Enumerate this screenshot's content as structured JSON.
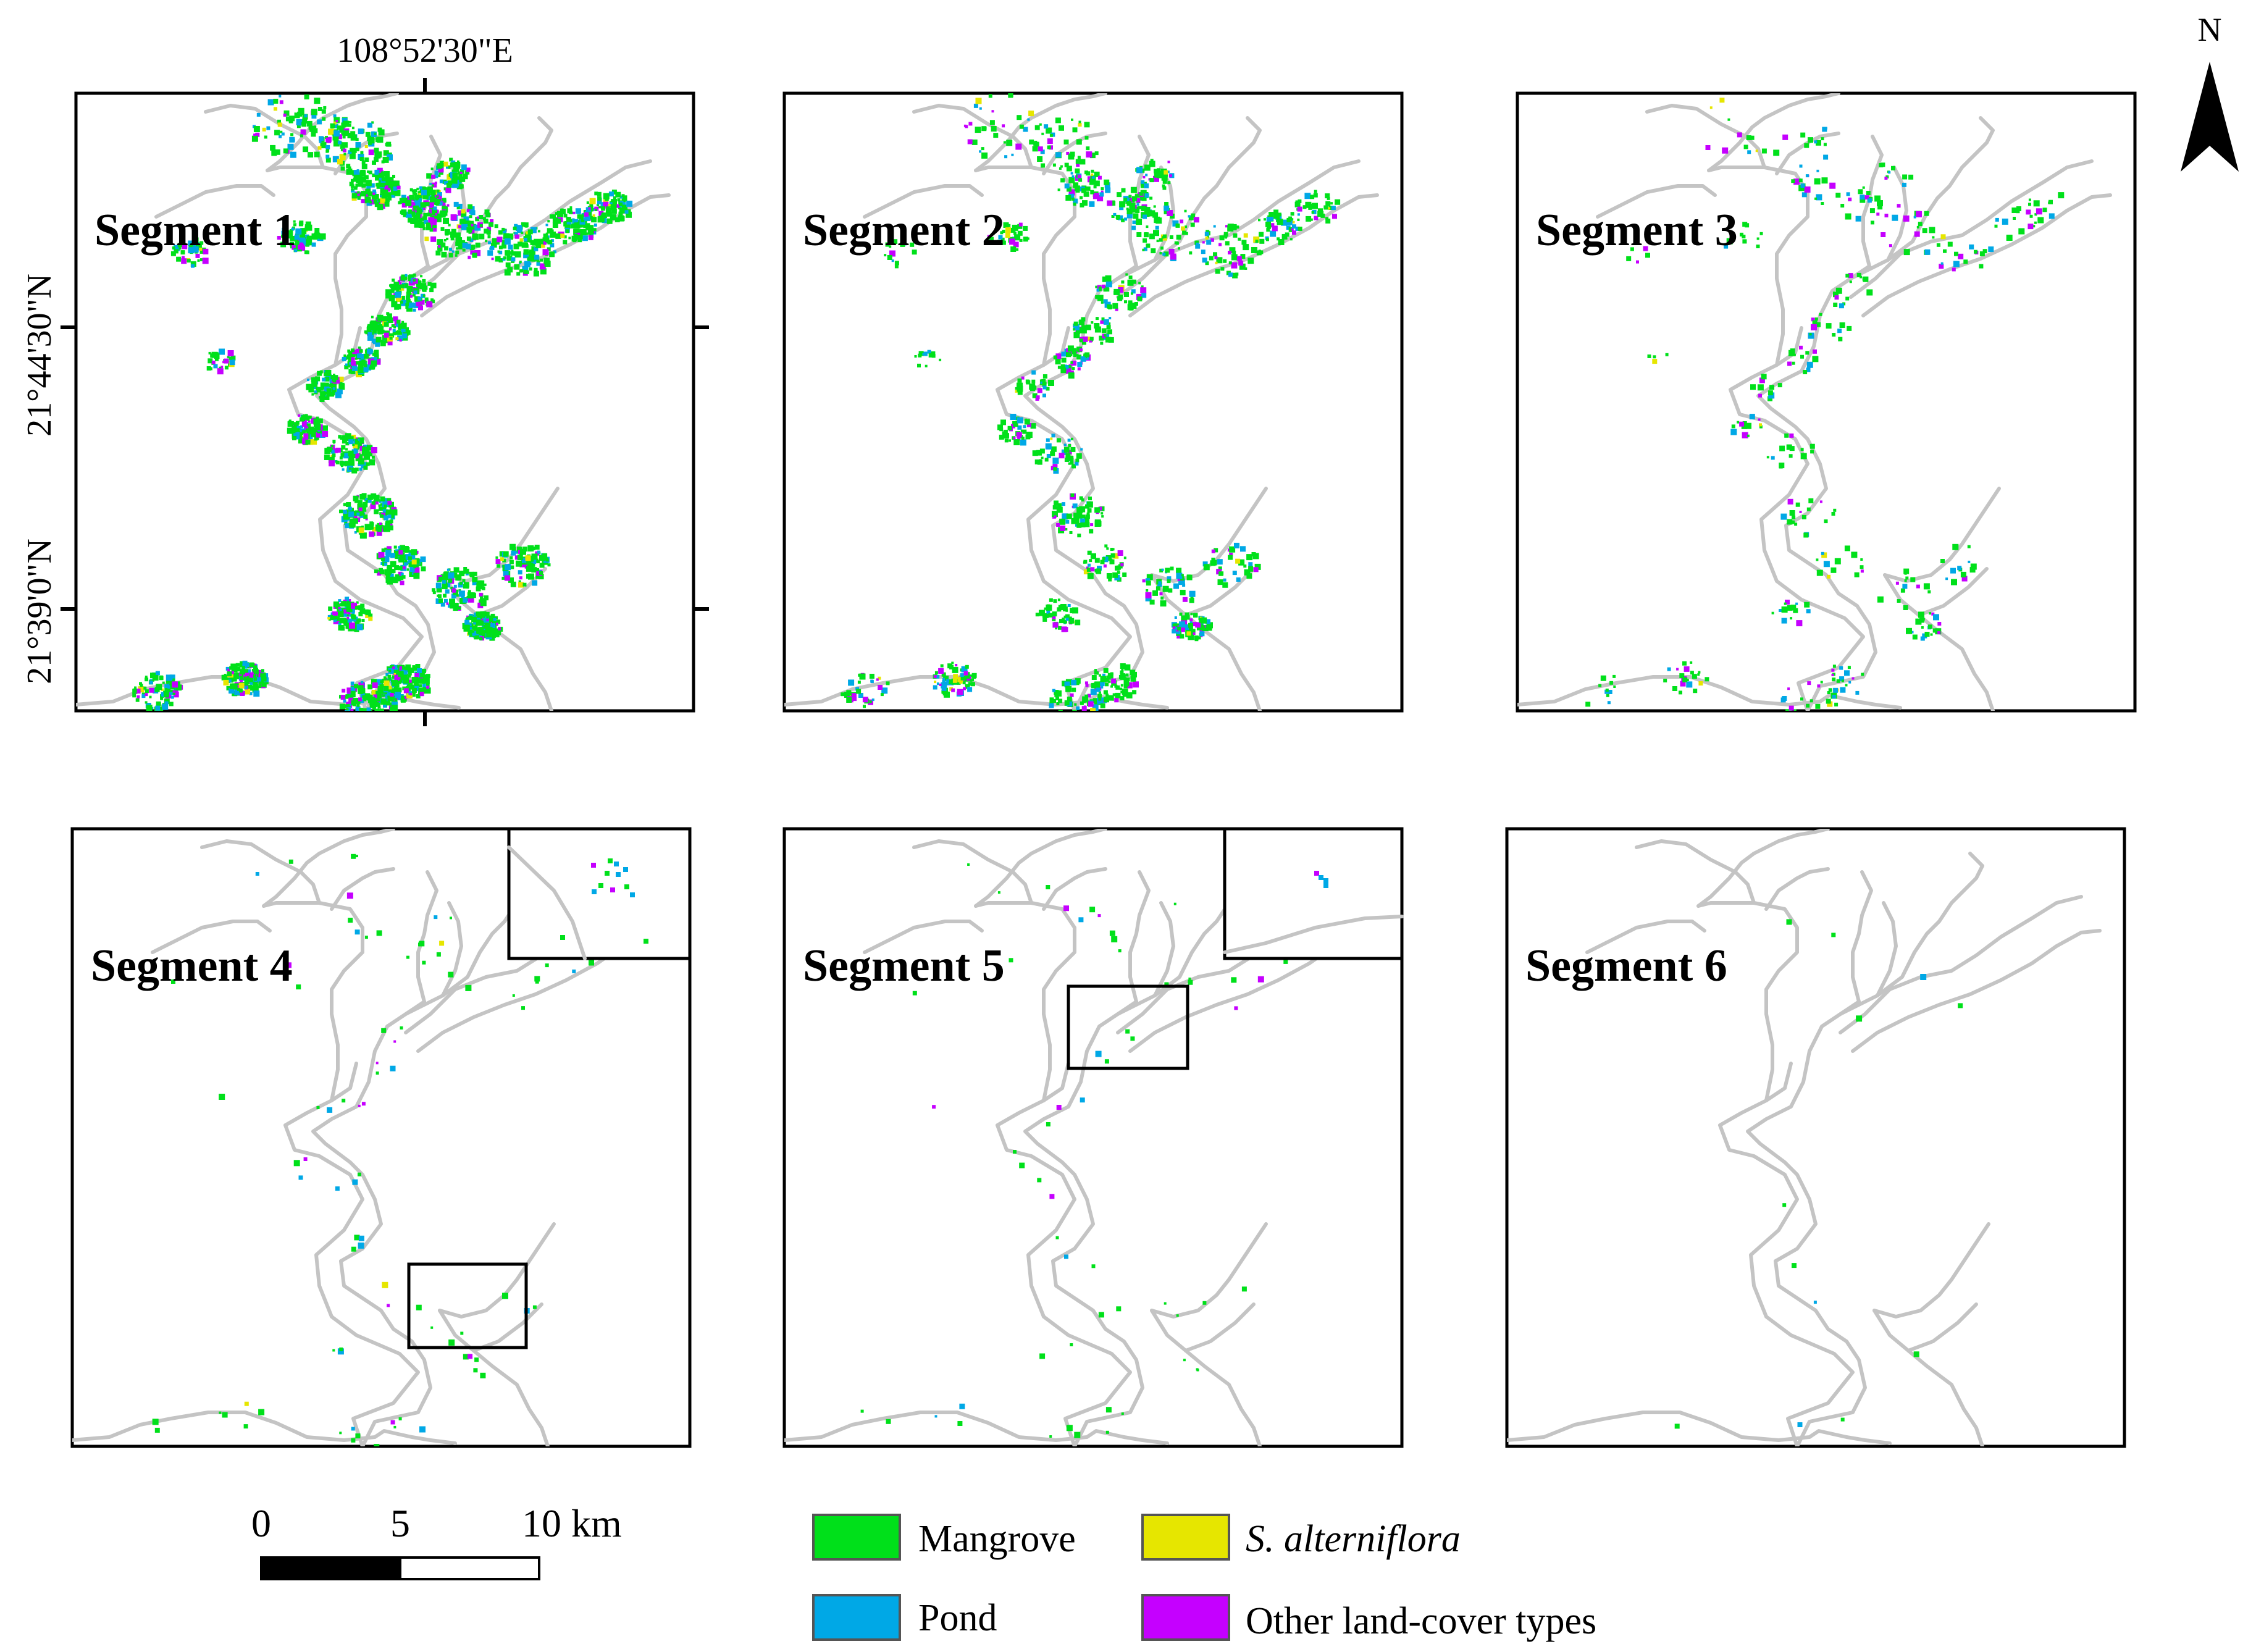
{
  "panels": [
    {
      "label": "Segment 1",
      "density": 1.0,
      "inset": false
    },
    {
      "label": "Segment 2",
      "density": 0.45,
      "inset": false
    },
    {
      "label": "Segment 3",
      "density": 0.14,
      "inset": false
    },
    {
      "label": "Segment 4",
      "density": 0.03,
      "inset": true,
      "inset_box": "lower"
    },
    {
      "label": "Segment 5",
      "density": 0.02,
      "inset": true,
      "inset_box": "upper"
    },
    {
      "label": "Segment 6",
      "density": 0.005,
      "inset": false
    }
  ],
  "coordinates": {
    "longitude": "108°52'30\"E",
    "latitude_upper": "21°44'30\"N",
    "latitude_lower": "21°39'0\"N"
  },
  "north_arrow": {
    "label": "N",
    "icon": "north-arrow-icon"
  },
  "scale_bar": {
    "labels": [
      "0",
      "5",
      "10 km"
    ]
  },
  "legend": {
    "items": [
      {
        "label": "Mangrove",
        "color": "#00e01a",
        "italic": false
      },
      {
        "label": "S. alterniflora",
        "color": "#e6e600",
        "italic": true
      },
      {
        "label": "Pond",
        "color": "#00a8e6",
        "italic": false
      },
      {
        "label": "Other land-cover types",
        "color": "#c500ff",
        "italic": false
      }
    ]
  },
  "colors": {
    "coastline": "#c4c4c4",
    "frame": "#000000"
  }
}
